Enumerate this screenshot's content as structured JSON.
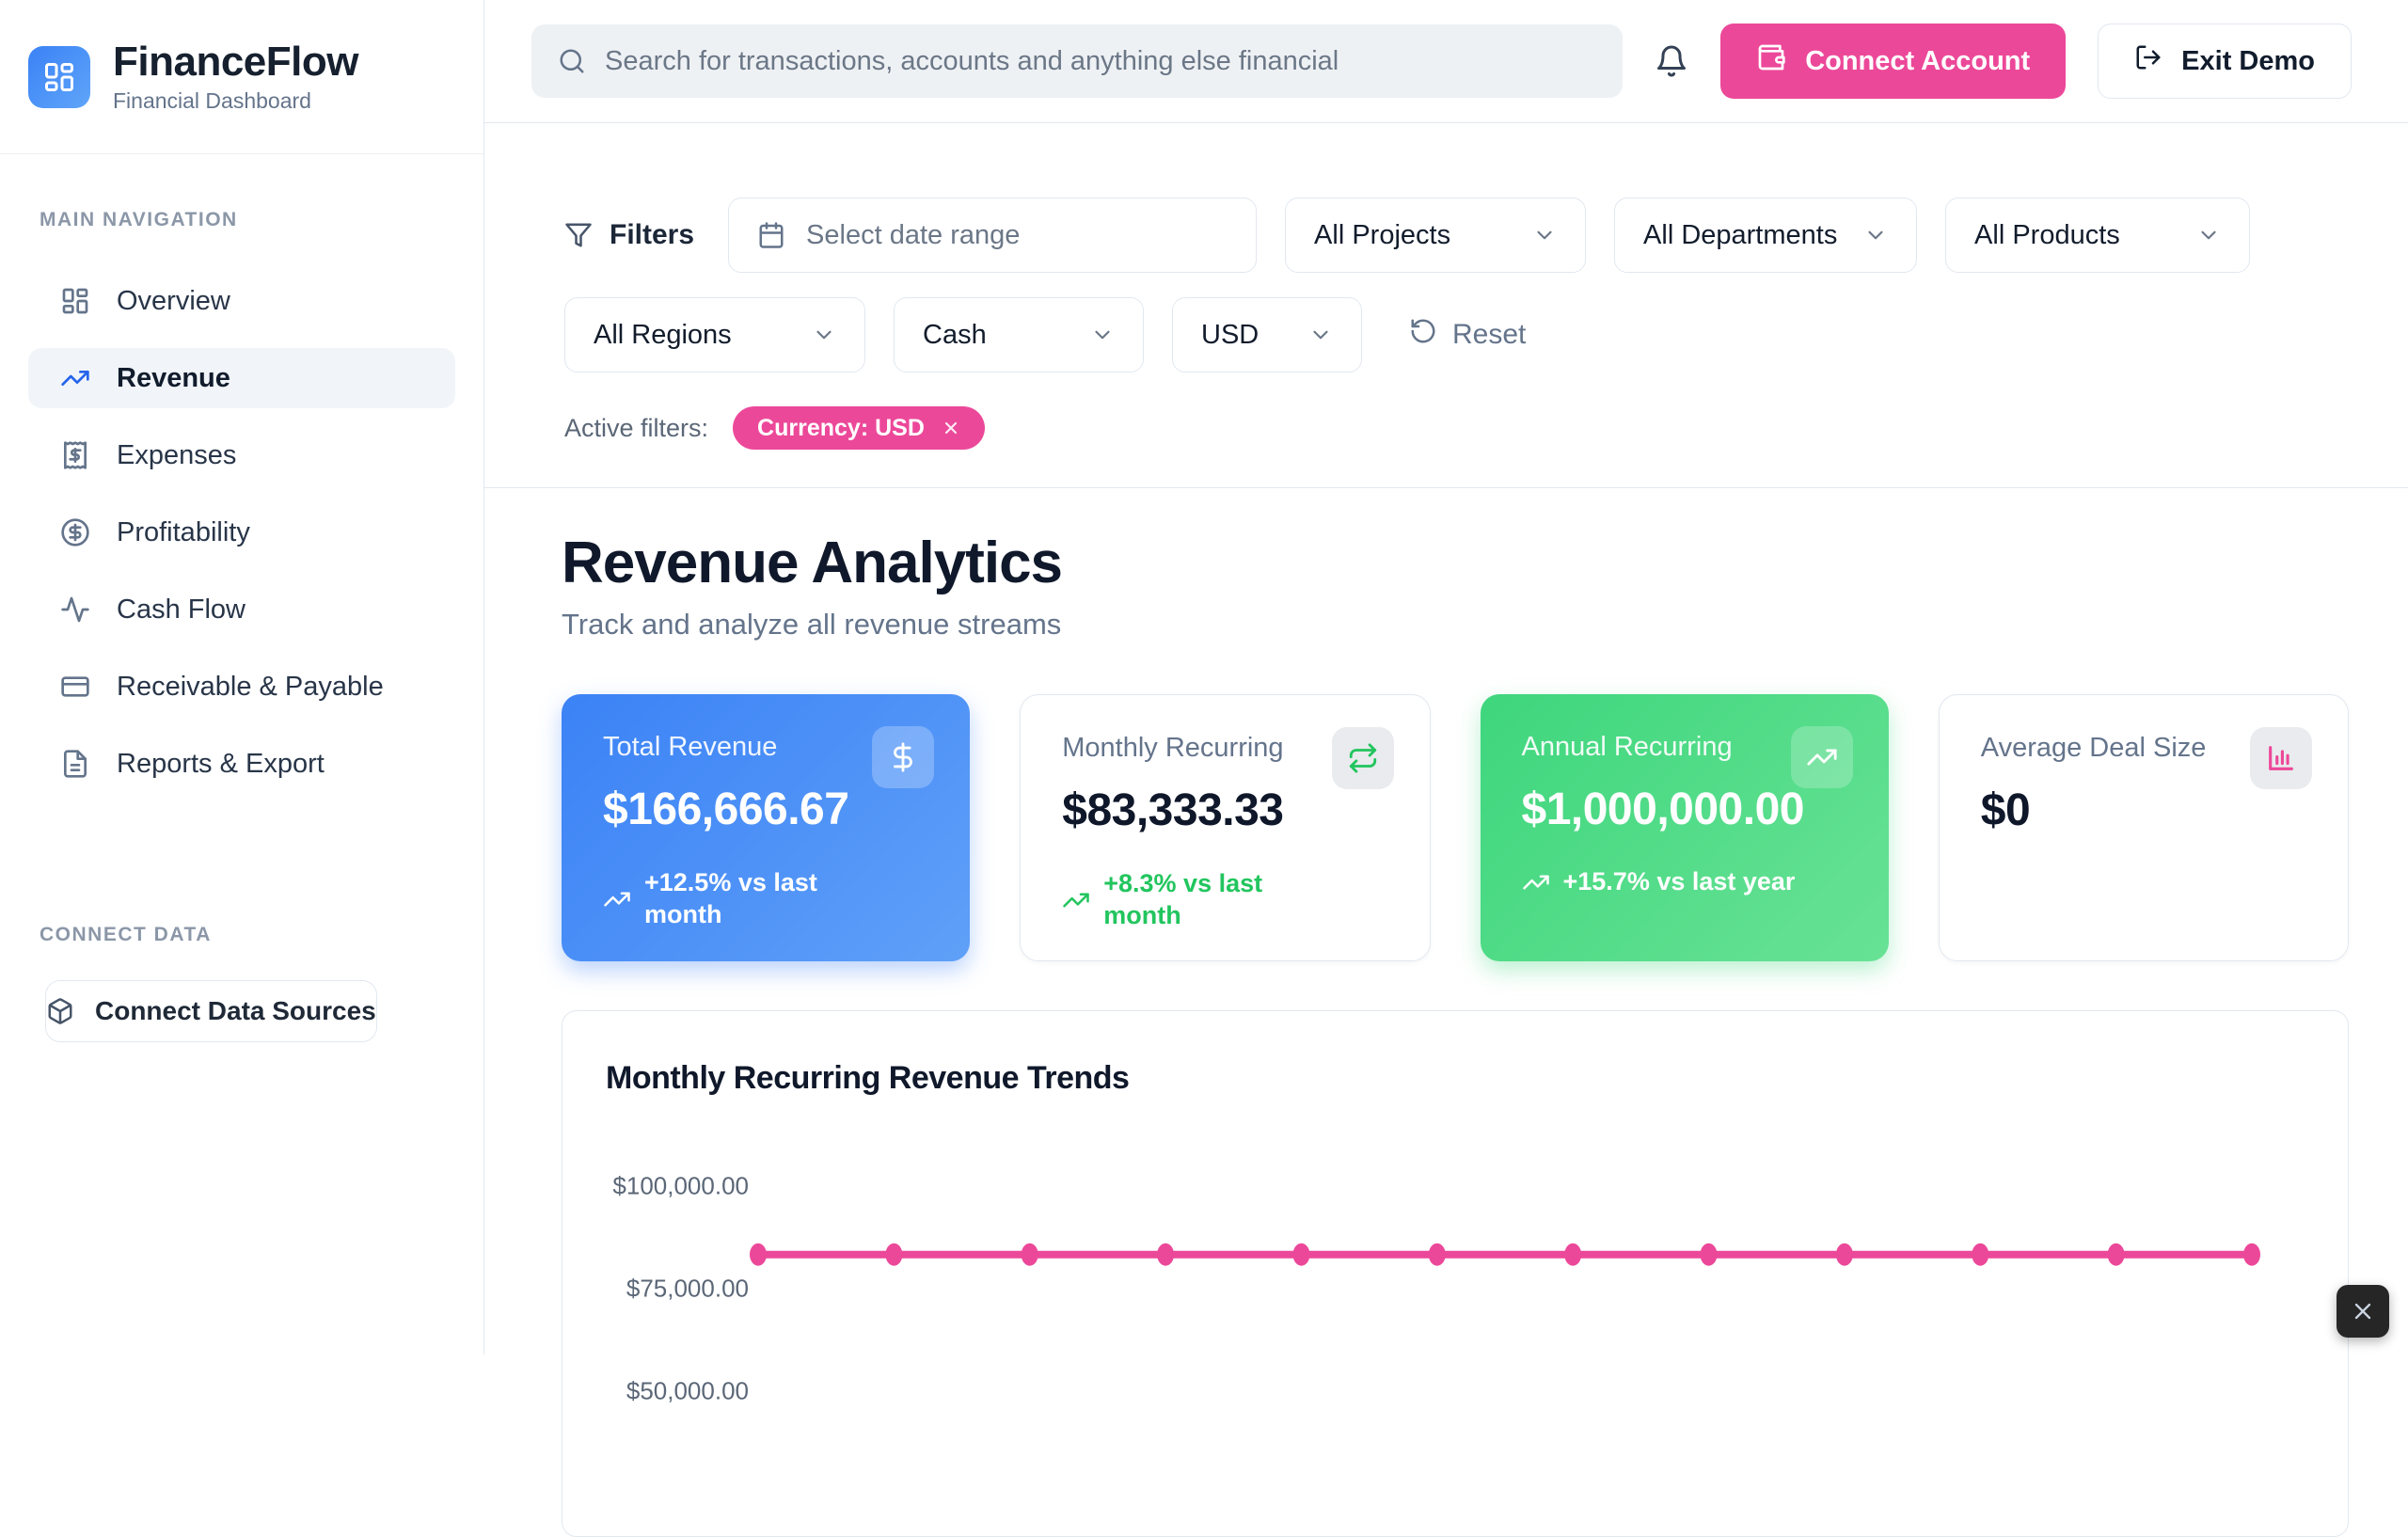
{
  "brand": {
    "title": "FinanceFlow",
    "subtitle": "Financial Dashboard"
  },
  "topbar": {
    "search_placeholder": "Search for transactions, accounts and anything else financial",
    "connect_account": "Connect Account",
    "exit_demo": "Exit Demo"
  },
  "sidebar": {
    "nav_label": "MAIN NAVIGATION",
    "items": [
      {
        "label": "Overview",
        "icon": "layout-dashboard",
        "active": false
      },
      {
        "label": "Revenue",
        "icon": "trending-up",
        "active": true
      },
      {
        "label": "Expenses",
        "icon": "receipt",
        "active": false
      },
      {
        "label": "Profitability",
        "icon": "circle-dollar",
        "active": false
      },
      {
        "label": "Cash Flow",
        "icon": "activity",
        "active": false
      },
      {
        "label": "Receivable & Payable",
        "icon": "credit-card",
        "active": false
      },
      {
        "label": "Reports & Export",
        "icon": "file-text",
        "active": false
      }
    ],
    "connect_label": "CONNECT DATA",
    "connect_button": "Connect Data Sources"
  },
  "filters": {
    "title": "Filters",
    "date_placeholder": "Select date range",
    "projects": "All Projects",
    "departments": "All Departments",
    "products": "All Products",
    "regions": "All Regions",
    "account_type": "Cash",
    "currency": "USD",
    "reset": "Reset",
    "active_filters_label": "Active filters:",
    "active_chip": "Currency: USD"
  },
  "page": {
    "title": "Revenue Analytics",
    "subtitle": "Track and analyze all revenue streams"
  },
  "metric_cards": [
    {
      "label": "Total Revenue",
      "value": "$166,666.67",
      "delta": "+12.5% vs last month",
      "icon": "dollar-sign",
      "variant": "blue"
    },
    {
      "label": "Monthly Recurring",
      "value": "$83,333.33",
      "delta": "+8.3% vs last month",
      "icon": "repeat",
      "variant": "white"
    },
    {
      "label": "Annual Recurring",
      "value": "$1,000,000.00",
      "delta": "+15.7% vs last year",
      "icon": "trending-up",
      "variant": "green"
    },
    {
      "label": "Average Deal Size",
      "value": "$0",
      "delta": "",
      "icon": "bar-chart",
      "variant": "white"
    }
  ],
  "chart_data": {
    "type": "line",
    "title": "Monthly Recurring Revenue Trends",
    "series": [
      {
        "name": "Monthly Recurring Revenue",
        "values": [
          83333.33,
          83333.33,
          83333.33,
          83333.33,
          83333.33,
          83333.33,
          83333.33,
          83333.33,
          83333.33,
          83333.33,
          83333.33,
          83333.33
        ]
      }
    ],
    "point_count": 12,
    "x_labels_visible": false,
    "visible_y_ticks": [
      "$100,000.00",
      "$75,000.00",
      "$50,000.00"
    ],
    "y_tick_values": [
      100000,
      75000,
      50000
    ],
    "line_color": "#ec4899",
    "grid": false,
    "legend": false
  },
  "colors": {
    "accent_pink": "#ec4899",
    "accent_blue": "#3b82f6",
    "accent_green": "#22c55e",
    "border": "#e2e8f0"
  }
}
